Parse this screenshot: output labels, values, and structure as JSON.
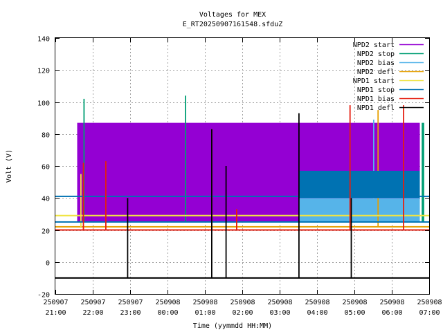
{
  "chart_data": {
    "type": "line",
    "title": "Voltages for MEX",
    "subtitle": "E_RT20250907161548.sfduZ",
    "xlabel": "Time (yymmdd HH:MM)",
    "ylabel": "Volt (V)",
    "xlim": [
      "250907 21:00",
      "250908 07:00"
    ],
    "ylim": [
      -20,
      140
    ],
    "grid": true,
    "legend_position": "top-right",
    "y_ticks": [
      "-20",
      "0",
      "20",
      "40",
      "60",
      "80",
      "100",
      "120",
      "140"
    ],
    "x_ticks": [
      {
        "date": "250907",
        "time": "21:00"
      },
      {
        "date": "250907",
        "time": "22:00"
      },
      {
        "date": "250907",
        "time": "23:00"
      },
      {
        "date": "250908",
        "time": "00:00"
      },
      {
        "date": "250908",
        "time": "01:00"
      },
      {
        "date": "250908",
        "time": "02:00"
      },
      {
        "date": "250908",
        "time": "03:00"
      },
      {
        "date": "250908",
        "time": "04:00"
      },
      {
        "date": "250908",
        "time": "05:00"
      },
      {
        "date": "250908",
        "time": "06:00"
      },
      {
        "date": "250908",
        "time": "07:00"
      }
    ],
    "series": [
      {
        "name": "NPD2 start",
        "color": "#9400d3",
        "segments": [
          {
            "x_from": "250907 21:35",
            "x_to": "250908 06:45",
            "y_low": 25,
            "y_high": 87
          }
        ]
      },
      {
        "name": "NPD2 stop",
        "color": "#009e73",
        "segments": [
          {
            "x_from": "250907 21:45",
            "x_to": "250907 21:47",
            "y_low": 25,
            "y_high": 102
          },
          {
            "x_from": "250908 00:28",
            "x_to": "250908 00:30",
            "y_low": 25,
            "y_high": 104
          },
          {
            "x_from": "250908 06:48",
            "x_to": "250908 06:52",
            "y_low": 25,
            "y_high": 87
          }
        ]
      },
      {
        "name": "NPD2 bias",
        "color": "#56b4e9",
        "segments": [
          {
            "x_from": "250908 03:30",
            "x_to": "250908 06:45",
            "y_low": 25,
            "y_high": 40
          },
          {
            "x_from": "250908 05:30",
            "x_to": "250908 05:32",
            "y_low": 25,
            "y_high": 89
          }
        ]
      },
      {
        "name": "NPD2 defl",
        "color": "#e69f00",
        "segments": [
          {
            "x_from": "250907 21:00",
            "x_to": "250908 07:00",
            "y_low": 22,
            "y_high": 22
          },
          {
            "x_from": "250908 05:37",
            "x_to": "250908 05:39",
            "y_low": 22,
            "y_high": 95
          }
        ]
      },
      {
        "name": "NPD1 start",
        "color": "#f0e442",
        "segments": [
          {
            "x_from": "250907 21:00",
            "x_to": "250908 07:00",
            "y_low": 29,
            "y_high": 29
          },
          {
            "x_from": "250907 21:40",
            "x_to": "250907 21:42",
            "y_low": 22,
            "y_high": 55
          }
        ]
      },
      {
        "name": "NPD1 stop",
        "color": "#0072b2",
        "segments": [
          {
            "x_from": "250907 21:00",
            "x_to": "250908 07:00",
            "y_low": 41,
            "y_high": 41
          },
          {
            "x_from": "250908 03:30",
            "x_to": "250908 06:45",
            "y_low": 40,
            "y_high": 57
          },
          {
            "x_from": "250907 21:00",
            "x_to": "250908 07:00",
            "y_low": 25,
            "y_high": 25
          }
        ]
      },
      {
        "name": "NPD1 bias",
        "color": "#e51e10",
        "segments": [
          {
            "x_from": "250907 21:00",
            "x_to": "250908 07:00",
            "y_low": 20,
            "y_high": 20
          },
          {
            "x_from": "250907 21:44",
            "x_to": "250907 21:46",
            "y_low": 20,
            "y_high": 62
          },
          {
            "x_from": "250907 22:20",
            "x_to": "250907 22:22",
            "y_low": 20,
            "y_high": 63
          },
          {
            "x_from": "250908 01:10",
            "x_to": "250908 01:12",
            "y_low": 20,
            "y_high": 83
          },
          {
            "x_from": "250908 01:50",
            "x_to": "250908 01:52",
            "y_low": 20,
            "y_high": 33
          },
          {
            "x_from": "250908 04:52",
            "x_to": "250908 04:54",
            "y_low": 20,
            "y_high": 98
          },
          {
            "x_from": "250908 06:18",
            "x_to": "250908 06:20",
            "y_low": 20,
            "y_high": 98
          }
        ]
      },
      {
        "name": "NPD1 defl",
        "color": "#000000",
        "segments": [
          {
            "x_from": "250907 21:00",
            "x_to": "250908 07:00",
            "y_low": -10,
            "y_high": -10
          },
          {
            "x_from": "250907 22:55",
            "x_to": "250907 22:57",
            "y_low": -10,
            "y_high": 40
          },
          {
            "x_from": "250908 01:10",
            "x_to": "250908 01:12",
            "y_low": -10,
            "y_high": 83
          },
          {
            "x_from": "250908 01:33",
            "x_to": "250908 01:35",
            "y_low": -10,
            "y_high": 60
          },
          {
            "x_from": "250908 03:30",
            "x_to": "250908 03:32",
            "y_low": -10,
            "y_high": 93
          },
          {
            "x_from": "250908 04:54",
            "x_to": "250908 04:56",
            "y_low": -10,
            "y_high": 40
          }
        ]
      }
    ]
  }
}
